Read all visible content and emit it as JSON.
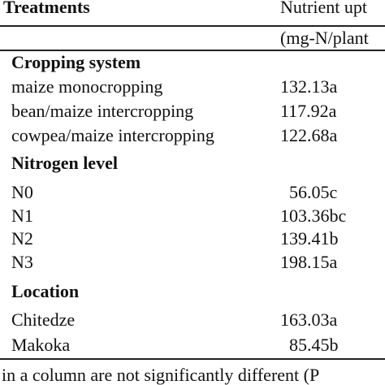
{
  "header": {
    "treatments": "Treatments",
    "uptake": "Nutrient upt",
    "unit": "(mg-N/plant"
  },
  "sections": [
    {
      "title": "Cropping system",
      "rows": [
        [
          "maize monocropping",
          "132.13a"
        ],
        [
          "bean/maize intercropping",
          "117.92a"
        ],
        [
          "cowpea/maize intercropping",
          "122.68a"
        ]
      ]
    },
    {
      "title": "Nitrogen level",
      "rows": [
        [
          "N0",
          "56.05c"
        ],
        [
          "N1",
          "103.36bc"
        ],
        [
          "N2",
          "139.41b"
        ],
        [
          "N3",
          "198.15a"
        ]
      ]
    },
    {
      "title": "Location",
      "rows": [
        [
          "Chitedze",
          "163.03a"
        ],
        [
          "Makoka",
          "85.45b"
        ]
      ]
    }
  ],
  "footnote": "in a column are not significantly different (P"
}
